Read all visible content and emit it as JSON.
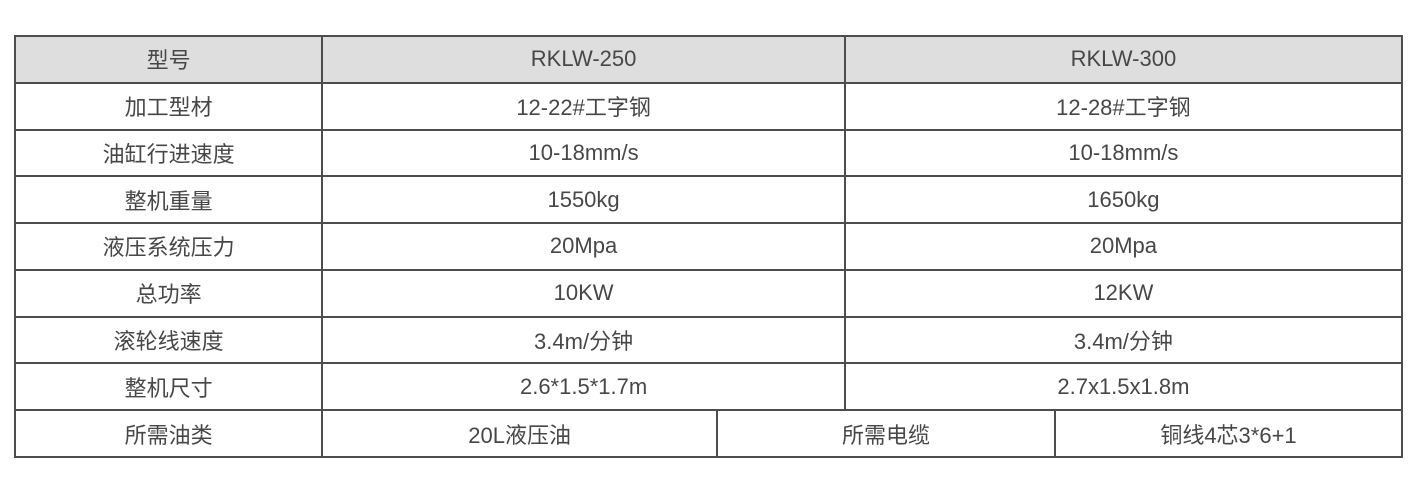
{
  "spec_table": {
    "header": [
      "型号",
      "RKLW-250",
      "RKLW-300"
    ],
    "rows": [
      {
        "label": "加工型材",
        "rklw250": "12-22#工字钢",
        "rklw300": "12-28#工字钢"
      },
      {
        "label": "油缸行进速度",
        "rklw250": "10-18mm/s",
        "rklw300": "10-18mm/s"
      },
      {
        "label": "整机重量",
        "rklw250": "1550kg",
        "rklw300": "1650kg"
      },
      {
        "label": "液压系统压力",
        "rklw250": "20Mpa",
        "rklw300": "20Mpa"
      },
      {
        "label": "总功率",
        "rklw250": "10KW",
        "rklw300": "12KW"
      },
      {
        "label": "滚轮线速度",
        "rklw250": "3.4m/分钟",
        "rklw300": "3.4m/分钟"
      },
      {
        "label": "整机尺寸",
        "rklw250": "2.6*1.5*1.7m",
        "rklw300": "2.7x1.5x1.8m"
      }
    ],
    "footer_row": {
      "oil_label": "所需油类",
      "oil_value": "20L液压油",
      "cable_label": "所需电缆",
      "cable_value": "铜线4芯3*6+1"
    },
    "colors": {
      "header_bg": "#dedede",
      "border": "#4d4d4d",
      "text": "#474747",
      "cell_bg": "#ffffff"
    }
  }
}
